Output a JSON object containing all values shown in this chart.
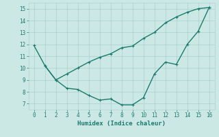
{
  "line1_x": [
    0,
    1,
    2,
    3,
    4,
    5,
    6,
    7,
    8,
    9,
    10,
    11,
    12,
    13,
    14,
    15,
    16
  ],
  "line1_y": [
    11.9,
    10.2,
    9.0,
    8.3,
    8.2,
    7.7,
    7.3,
    7.4,
    6.9,
    6.9,
    7.5,
    9.5,
    10.5,
    10.3,
    12.0,
    13.1,
    15.1
  ],
  "line2_x": [
    1,
    2,
    3,
    4,
    5,
    6,
    7,
    8,
    9,
    10,
    11,
    12,
    13,
    14,
    15,
    16
  ],
  "line2_y": [
    10.2,
    9.0,
    9.5,
    10.0,
    10.5,
    10.9,
    11.2,
    11.7,
    11.85,
    12.5,
    13.0,
    13.8,
    14.3,
    14.7,
    15.0,
    15.1
  ],
  "line_color": "#1a7a6e",
  "bg_color": "#cce8e5",
  "grid_color": "#afd4d0",
  "xlabel": "Humidex (Indice chaleur)",
  "xlim": [
    -0.5,
    16.5
  ],
  "ylim": [
    6.5,
    15.5
  ],
  "xticks": [
    0,
    1,
    2,
    3,
    4,
    5,
    6,
    7,
    8,
    9,
    10,
    11,
    12,
    13,
    14,
    15,
    16
  ],
  "yticks": [
    7,
    8,
    9,
    10,
    11,
    12,
    13,
    14,
    15
  ],
  "marker_size": 3.5,
  "linewidth": 1.0
}
